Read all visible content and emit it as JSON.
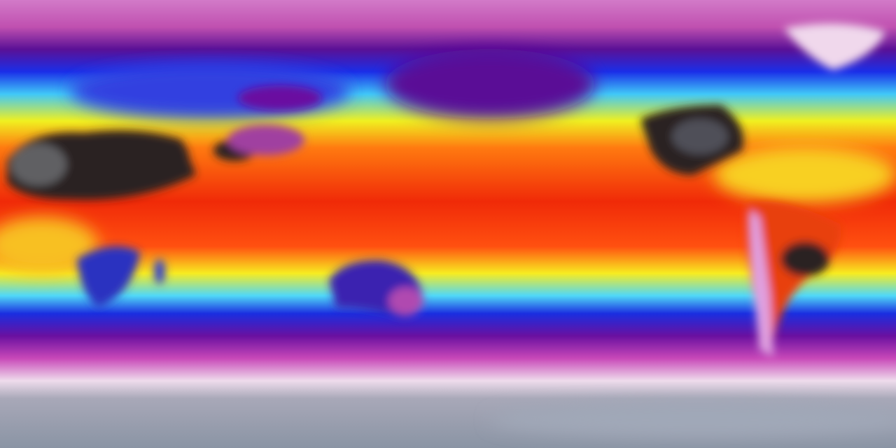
{
  "map": {
    "projection": "equirectangular",
    "variable_colormap": [
      {
        "stop": 0.0,
        "color": "#d27ac8"
      },
      {
        "stop": 0.06,
        "color": "#c050b0"
      },
      {
        "stop": 0.11,
        "color": "#5a1096"
      },
      {
        "stop": 0.16,
        "color": "#1a2ee8"
      },
      {
        "stop": 0.21,
        "color": "#40c8f8"
      },
      {
        "stop": 0.27,
        "color": "#f0f020"
      },
      {
        "stop": 0.33,
        "color": "#ff7a10"
      },
      {
        "stop": 0.45,
        "color": "#f02a08"
      },
      {
        "stop": 0.55,
        "color": "#ff5010"
      },
      {
        "stop": 0.61,
        "color": "#f8ec20"
      },
      {
        "stop": 0.66,
        "color": "#50d8f8"
      },
      {
        "stop": 0.7,
        "color": "#1a2ee0"
      },
      {
        "stop": 0.75,
        "color": "#6a10a0"
      },
      {
        "stop": 0.8,
        "color": "#c848b8"
      },
      {
        "stop": 0.85,
        "color": "#eedcec"
      },
      {
        "stop": 0.89,
        "color": "#a8a8b8"
      },
      {
        "stop": 1.0,
        "color": "#8a94a4"
      }
    ],
    "land_colors": {
      "hot_desert": "#2a2024",
      "desert_core": "#606064",
      "cold_plateau": "#a040a0",
      "australia": "#3a20b0",
      "greenland": "#f0d8ec",
      "andes": "#e0a0e0"
    }
  }
}
